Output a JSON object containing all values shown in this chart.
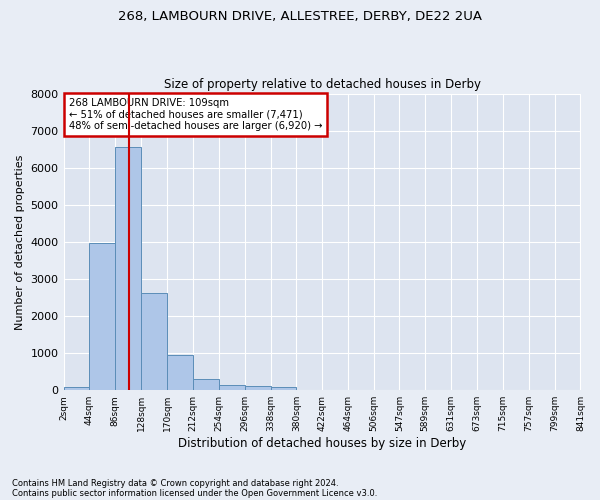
{
  "title1": "268, LAMBOURN DRIVE, ALLESTREE, DERBY, DE22 2UA",
  "title2": "Size of property relative to detached houses in Derby",
  "xlabel": "Distribution of detached houses by size in Derby",
  "ylabel": "Number of detached properties",
  "footnote1": "Contains HM Land Registry data © Crown copyright and database right 2024.",
  "footnote2": "Contains public sector information licensed under the Open Government Licence v3.0.",
  "annotation_line1": "268 LAMBOURN DRIVE: 109sqm",
  "annotation_line2": "← 51% of detached houses are smaller (7,471)",
  "annotation_line3": "48% of semi-detached houses are larger (6,920) →",
  "bar_values": [
    80,
    3980,
    6550,
    2620,
    950,
    310,
    130,
    110,
    80,
    0,
    0,
    0,
    0,
    0,
    0,
    0,
    0,
    0,
    0,
    0
  ],
  "bin_edges": [
    2,
    44,
    86,
    128,
    170,
    212,
    254,
    296,
    338,
    380,
    422,
    464,
    506,
    547,
    589,
    631,
    673,
    715,
    757,
    799,
    841
  ],
  "tick_labels": [
    "2sqm",
    "44sqm",
    "86sqm",
    "128sqm",
    "170sqm",
    "212sqm",
    "254sqm",
    "296sqm",
    "338sqm",
    "380sqm",
    "422sqm",
    "464sqm",
    "506sqm",
    "547sqm",
    "589sqm",
    "631sqm",
    "673sqm",
    "715sqm",
    "757sqm",
    "799sqm",
    "841sqm"
  ],
  "bar_color": "#aec6e8",
  "bar_edge_color": "#5b8db8",
  "vline_x": 109,
  "vline_color": "#cc0000",
  "ylim": [
    0,
    8000
  ],
  "yticks": [
    0,
    1000,
    2000,
    3000,
    4000,
    5000,
    6000,
    7000,
    8000
  ],
  "bg_color": "#e8edf5",
  "plot_bg_color": "#dde4f0",
  "grid_color": "#ffffff",
  "annotation_box_color": "#cc0000",
  "figsize": [
    6.0,
    5.0
  ],
  "dpi": 100
}
